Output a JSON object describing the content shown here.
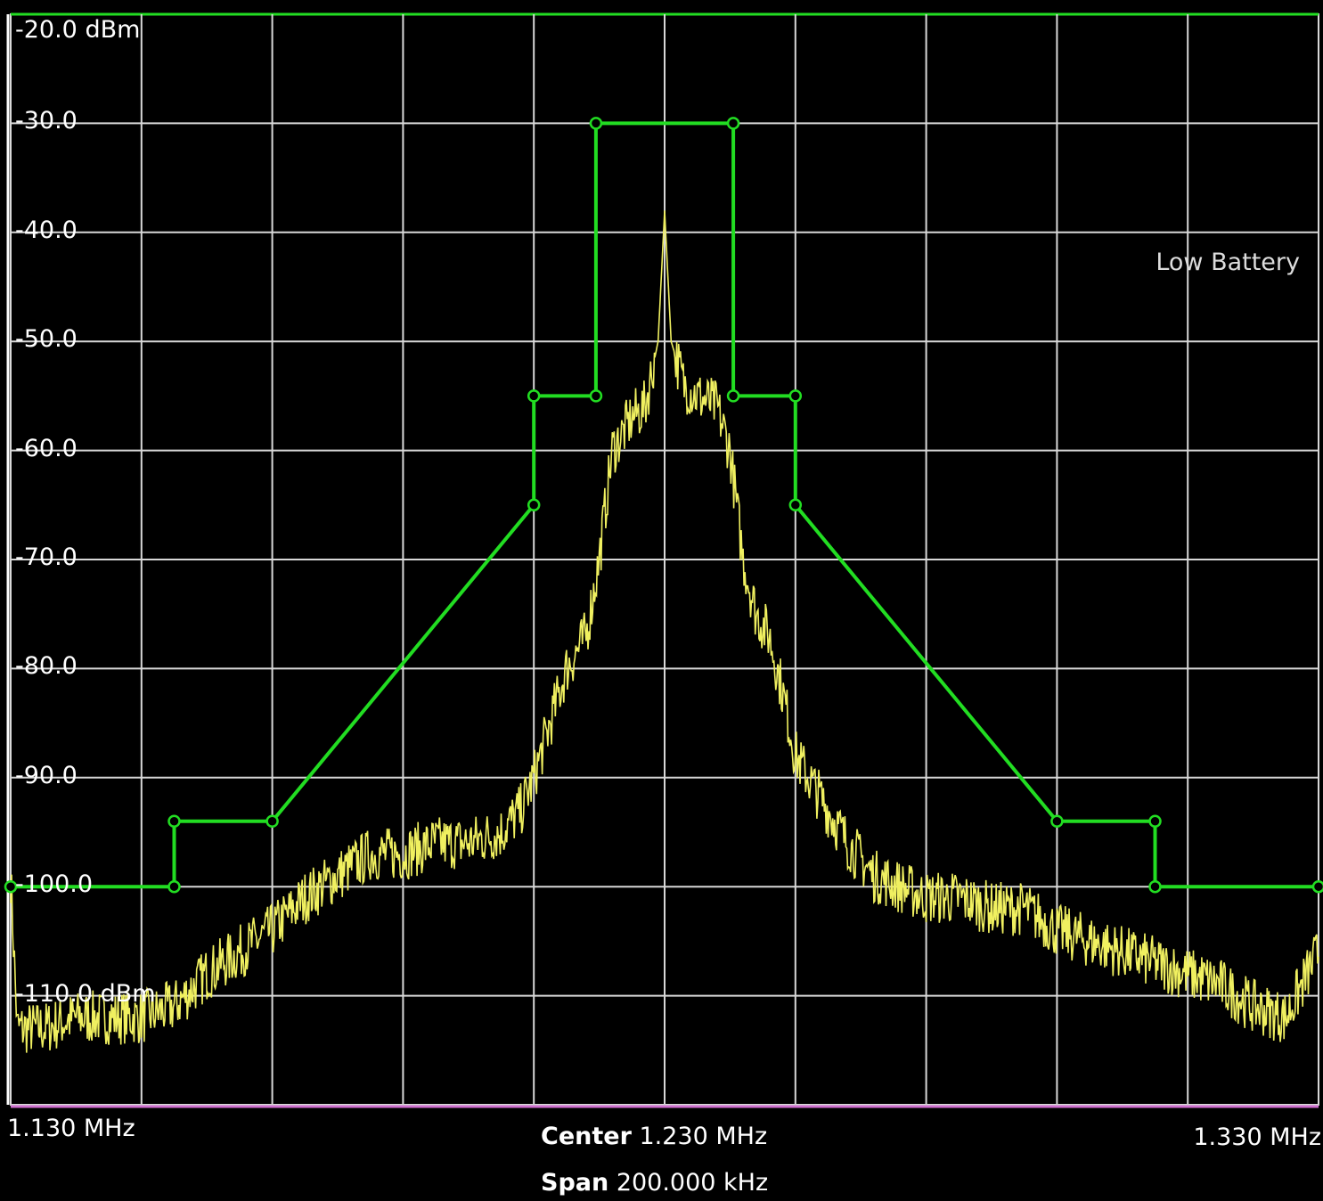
{
  "status_text": "Low Battery",
  "colors": {
    "background": "#000000",
    "grid": "#d8d8d8",
    "trace": "#f0f060",
    "mask": "#22dd22",
    "baseline": "#d070d0"
  },
  "footer": {
    "center_label": "Center",
    "center_value": "1.230 MHz",
    "span_label": "Span",
    "span_value": "200.000 kHz",
    "start_label": "1.130 MHz",
    "stop_label": "1.330 MHz"
  },
  "chart_data": {
    "type": "line",
    "title": "",
    "xlabel": "",
    "ylabel": "",
    "xlim": [
      1.13,
      1.33
    ],
    "ylim": [
      -120,
      -20
    ],
    "x_unit": "MHz",
    "y_unit": "dBm",
    "grid": true,
    "y_tick_labels": [
      "-20.0 dBm",
      "-30.0",
      "-40.0",
      "-50.0",
      "-60.0",
      "-70.0",
      "-80.0",
      "-90.0",
      "-100.0",
      "-110.0 dBm"
    ],
    "y_tick_values": [
      -20,
      -30,
      -40,
      -50,
      -60,
      -70,
      -80,
      -90,
      -100,
      -110
    ],
    "x_divisions": 10,
    "series": [
      {
        "role": "mask",
        "x": [
          1.13,
          1.155,
          1.155,
          1.17,
          1.21,
          1.21,
          1.2195,
          1.2195,
          1.2405,
          1.2405,
          1.25,
          1.25,
          1.29,
          1.305,
          1.305,
          1.33
        ],
        "y": [
          -100,
          -100,
          -94,
          -94,
          -65,
          -55,
          -55,
          -30,
          -30,
          -55,
          -55,
          -65,
          -94,
          -94,
          -100,
          -100
        ]
      },
      {
        "role": "trace",
        "x": [
          1.13,
          1.131,
          1.135,
          1.14,
          1.145,
          1.15,
          1.155,
          1.16,
          1.165,
          1.17,
          1.175,
          1.18,
          1.185,
          1.19,
          1.195,
          1.2,
          1.205,
          1.208,
          1.21,
          1.212,
          1.215,
          1.218,
          1.22,
          1.222,
          1.225,
          1.227,
          1.229,
          1.23,
          1.231,
          1.233,
          1.235,
          1.238,
          1.24,
          1.242,
          1.244,
          1.246,
          1.248,
          1.25,
          1.252,
          1.255,
          1.258,
          1.262,
          1.266,
          1.27,
          1.275,
          1.28,
          1.285,
          1.29,
          1.295,
          1.3,
          1.305,
          1.31,
          1.315,
          1.32,
          1.325,
          1.33
        ],
        "y": [
          -99,
          -113,
          -113,
          -112,
          -112,
          -112,
          -111,
          -108,
          -106,
          -104,
          -101,
          -99,
          -97,
          -97,
          -96,
          -96,
          -95,
          -93,
          -90,
          -86,
          -80,
          -77,
          -70,
          -60,
          -57,
          -56,
          -50,
          -38,
          -50,
          -54,
          -55,
          -56,
          -60,
          -70,
          -75,
          -77,
          -82,
          -88,
          -90,
          -93,
          -96,
          -99,
          -100,
          -101,
          -101,
          -102,
          -102,
          -104,
          -105,
          -106,
          -107,
          -108,
          -109,
          -111,
          -112,
          -106
        ]
      }
    ],
    "mask_points": [
      [
        1.13,
        -100
      ],
      [
        1.155,
        -100
      ],
      [
        1.155,
        -94
      ],
      [
        1.17,
        -94
      ],
      [
        1.21,
        -65
      ],
      [
        1.21,
        -55
      ],
      [
        1.2195,
        -55
      ],
      [
        1.2195,
        -30
      ],
      [
        1.2405,
        -30
      ],
      [
        1.2405,
        -55
      ],
      [
        1.25,
        -55
      ],
      [
        1.25,
        -65
      ],
      [
        1.29,
        -94
      ],
      [
        1.305,
        -94
      ],
      [
        1.305,
        -100
      ],
      [
        1.33,
        -100
      ]
    ]
  }
}
